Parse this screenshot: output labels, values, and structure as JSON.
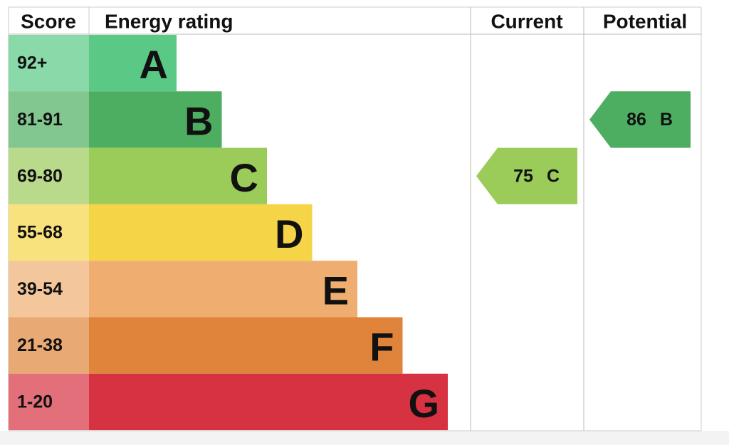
{
  "header": {
    "score": "Score",
    "rating": "Energy rating",
    "current": "Current",
    "potential": "Potential"
  },
  "bands": [
    {
      "score": "92+",
      "letter": "A",
      "color": "#59c985"
    },
    {
      "score": "81-91",
      "letter": "B",
      "color": "#4dae61"
    },
    {
      "score": "69-80",
      "letter": "C",
      "color": "#9bcb59"
    },
    {
      "score": "55-68",
      "letter": "D",
      "color": "#f5d547"
    },
    {
      "score": "39-54",
      "letter": "E",
      "color": "#efae70"
    },
    {
      "score": "21-38",
      "letter": "F",
      "color": "#e0843b"
    },
    {
      "score": "1-20",
      "letter": "G",
      "color": "#d63241"
    }
  ],
  "current": {
    "value": 75,
    "letter": "C"
  },
  "potential": {
    "value": 86,
    "letter": "B"
  }
}
